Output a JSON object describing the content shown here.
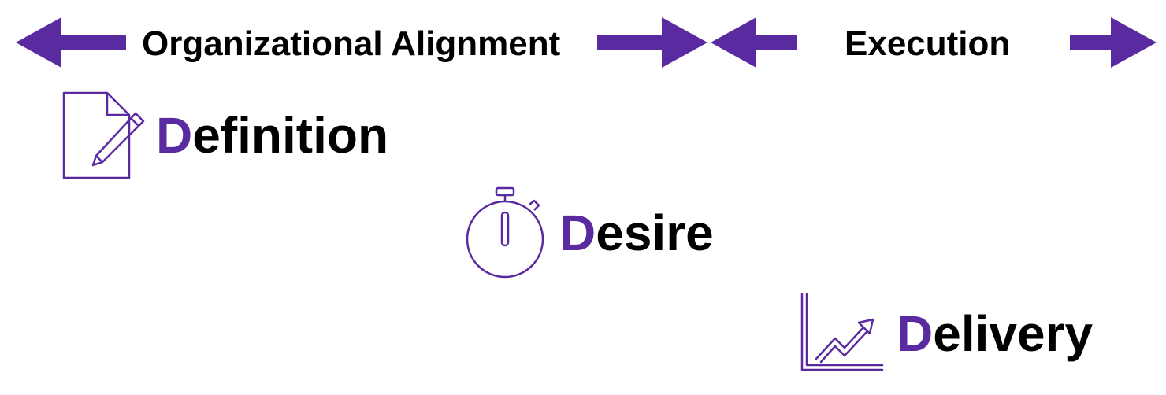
{
  "header": {
    "phases": [
      {
        "label": "Organizational Alignment"
      },
      {
        "label": "Execution"
      }
    ]
  },
  "stages": [
    {
      "initial": "D",
      "rest": "efinition",
      "icon": "document-edit-icon"
    },
    {
      "initial": "D",
      "rest": "esire",
      "icon": "stopwatch-icon"
    },
    {
      "initial": "D",
      "rest": "elivery",
      "icon": "growth-chart-icon"
    }
  ],
  "colors": {
    "accent": "#5a2aa0",
    "text": "#000000"
  }
}
